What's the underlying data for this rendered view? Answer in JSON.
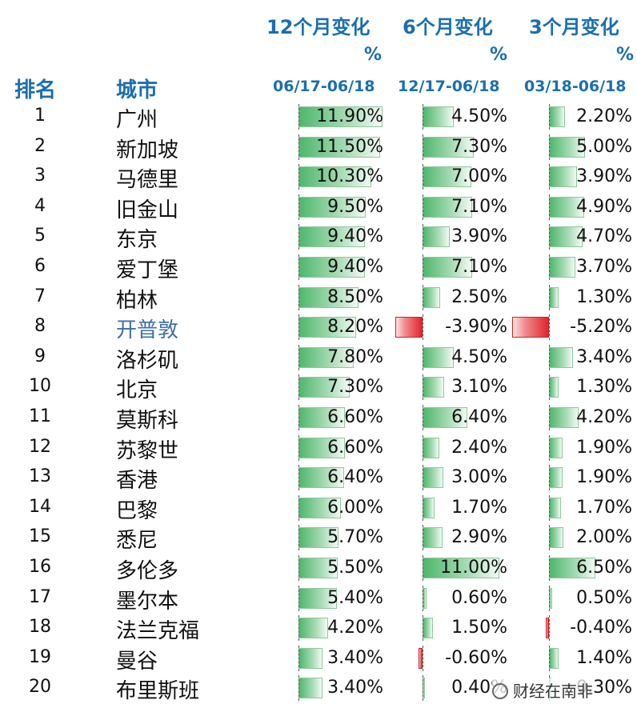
{
  "headers": {
    "rank": "排名",
    "city": "城市",
    "col12": "12个月变化",
    "col6": "6个月变化",
    "col3": "3个月变化",
    "pct": "%",
    "date12": "06/17-06/18",
    "date6": "12/17-06/18",
    "date3": "03/18-06/18"
  },
  "watermark": "财经在南非",
  "colors": {
    "positive": "#4eb76c",
    "negative": "#e0252c",
    "header": "#1a6fb0"
  },
  "chart_data": {
    "type": "table",
    "columns": [
      "排名",
      "城市",
      "12个月变化 % 06/17-06/18",
      "6个月变化 % 12/17-06/18",
      "3个月变化 % 03/18-06/18"
    ],
    "rows": [
      {
        "rank": "1",
        "city": "广州",
        "v12": 11.9,
        "v6": 4.5,
        "v3": 2.2,
        "t12": "11.90%",
        "t6": "4.50%",
        "t3": "2.20%"
      },
      {
        "rank": "2",
        "city": "新加坡",
        "v12": 11.5,
        "v6": 7.3,
        "v3": 5.0,
        "t12": "11.50%",
        "t6": "7.30%",
        "t3": "5.00%"
      },
      {
        "rank": "3",
        "city": "马德里",
        "v12": 10.3,
        "v6": 7.0,
        "v3": 3.9,
        "t12": "10.30%",
        "t6": "7.00%",
        "t3": "3.90%"
      },
      {
        "rank": "4",
        "city": "旧金山",
        "v12": 9.5,
        "v6": 7.1,
        "v3": 4.9,
        "t12": "9.50%",
        "t6": "7.10%",
        "t3": "4.90%"
      },
      {
        "rank": "5",
        "city": "东京",
        "v12": 9.4,
        "v6": 3.9,
        "v3": 4.7,
        "t12": "9.40%",
        "t6": "3.90%",
        "t3": "4.70%"
      },
      {
        "rank": "6",
        "city": "爱丁堡",
        "v12": 9.4,
        "v6": 7.1,
        "v3": 3.7,
        "t12": "9.40%",
        "t6": "7.10%",
        "t3": "3.70%"
      },
      {
        "rank": "7",
        "city": "柏林",
        "v12": 8.5,
        "v6": 2.5,
        "v3": 1.3,
        "t12": "8.50%",
        "t6": "2.50%",
        "t3": "1.30%"
      },
      {
        "rank": "8",
        "city": "开普敦",
        "v12": 8.2,
        "v6": -3.9,
        "v3": -5.2,
        "t12": "8.20%",
        "t6": "-3.90%",
        "t3": "-5.20%",
        "highlight": true
      },
      {
        "rank": "9",
        "city": "洛杉矶",
        "v12": 7.8,
        "v6": 4.5,
        "v3": 3.4,
        "t12": "7.80%",
        "t6": "4.50%",
        "t3": "3.40%"
      },
      {
        "rank": "10",
        "city": "北京",
        "v12": 7.3,
        "v6": 3.1,
        "v3": 1.3,
        "t12": "7.30%",
        "t6": "3.10%",
        "t3": "1.30%"
      },
      {
        "rank": "11",
        "city": "莫斯科",
        "v12": 6.6,
        "v6": 6.4,
        "v3": 4.2,
        "t12": "6.60%",
        "t6": "6.40%",
        "t3": "4.20%"
      },
      {
        "rank": "12",
        "city": "苏黎世",
        "v12": 6.6,
        "v6": 2.4,
        "v3": 1.9,
        "t12": "6.60%",
        "t6": "2.40%",
        "t3": "1.90%"
      },
      {
        "rank": "13",
        "city": "香港",
        "v12": 6.4,
        "v6": 3.0,
        "v3": 1.9,
        "t12": "6.40%",
        "t6": "3.00%",
        "t3": "1.90%"
      },
      {
        "rank": "14",
        "city": "巴黎",
        "v12": 6.0,
        "v6": 1.7,
        "v3": 1.7,
        "t12": "6.00%",
        "t6": "1.70%",
        "t3": "1.70%"
      },
      {
        "rank": "15",
        "city": "悉尼",
        "v12": 5.7,
        "v6": 2.9,
        "v3": 2.0,
        "t12": "5.70%",
        "t6": "2.90%",
        "t3": "2.00%"
      },
      {
        "rank": "16",
        "city": "多伦多",
        "v12": 5.5,
        "v6": 11.0,
        "v3": 6.5,
        "t12": "5.50%",
        "t6": "11.00%",
        "t3": "6.50%"
      },
      {
        "rank": "17",
        "city": "墨尔本",
        "v12": 5.4,
        "v6": 0.6,
        "v3": 0.5,
        "t12": "5.40%",
        "t6": "0.60%",
        "t3": "0.50%"
      },
      {
        "rank": "18",
        "city": "法兰克福",
        "v12": 4.2,
        "v6": 1.5,
        "v3": -0.4,
        "t12": "4.20%",
        "t6": "1.50%",
        "t3": "-0.40%"
      },
      {
        "rank": "19",
        "city": "曼谷",
        "v12": 3.4,
        "v6": -0.6,
        "v3": 1.4,
        "t12": "3.40%",
        "t6": "-0.60%",
        "t3": "1.40%"
      },
      {
        "rank": "20",
        "city": "布里斯班",
        "v12": 3.4,
        "v6": 0.4,
        "v3": 0.3,
        "t12": "3.40%",
        "t6": "0.40%",
        "t3": "0.30%"
      }
    ]
  }
}
